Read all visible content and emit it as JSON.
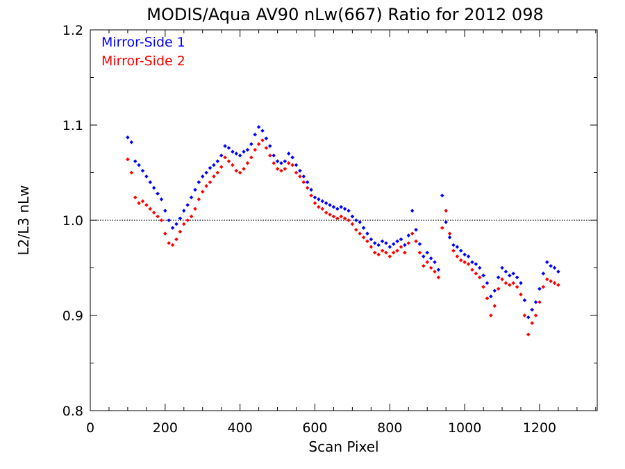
{
  "chart_data": {
    "type": "scatter",
    "title": "MODIS/Aqua AV90 nLw(667) Ratio for 2012 098",
    "xlabel": "Scan Pixel",
    "ylabel": "L2/L3 nLw",
    "xlim": [
      0,
      1354
    ],
    "ylim": [
      0.8,
      1.2
    ],
    "x_ticks": [
      0,
      200,
      400,
      600,
      800,
      1000,
      1200
    ],
    "x_tick_labels": [
      "0",
      "200",
      "400",
      "600",
      "800",
      "1000",
      "1200"
    ],
    "y_ticks": [
      0.8,
      0.9,
      1.0,
      1.1,
      1.2
    ],
    "y_tick_labels": [
      "0.8",
      "0.9",
      "1.0",
      "1.1",
      "1.2"
    ],
    "reference_line": {
      "y": 1.0,
      "style": "dotted"
    },
    "grid": false,
    "legend_placement": "top-left",
    "series": [
      {
        "name": "Mirror-Side 1",
        "color": "#0000ff",
        "points": [
          [
            100,
            1.087
          ],
          [
            110,
            1.082
          ],
          [
            120,
            1.062
          ],
          [
            130,
            1.058
          ],
          [
            140,
            1.052
          ],
          [
            150,
            1.046
          ],
          [
            160,
            1.04
          ],
          [
            170,
            1.034
          ],
          [
            180,
            1.028
          ],
          [
            190,
            1.022
          ],
          [
            200,
            1.01
          ],
          [
            210,
            1.0
          ],
          [
            220,
            0.992
          ],
          [
            230,
            0.996
          ],
          [
            240,
            1.002
          ],
          [
            250,
            1.01
          ],
          [
            260,
            1.016
          ],
          [
            270,
            1.024
          ],
          [
            280,
            1.032
          ],
          [
            290,
            1.04
          ],
          [
            300,
            1.046
          ],
          [
            310,
            1.05
          ],
          [
            320,
            1.055
          ],
          [
            330,
            1.058
          ],
          [
            340,
            1.062
          ],
          [
            350,
            1.068
          ],
          [
            360,
            1.078
          ],
          [
            370,
            1.076
          ],
          [
            380,
            1.072
          ],
          [
            390,
            1.07
          ],
          [
            400,
            1.068
          ],
          [
            410,
            1.072
          ],
          [
            420,
            1.074
          ],
          [
            430,
            1.08
          ],
          [
            440,
            1.09
          ],
          [
            450,
            1.098
          ],
          [
            460,
            1.094
          ],
          [
            470,
            1.086
          ],
          [
            480,
            1.078
          ],
          [
            490,
            1.068
          ],
          [
            500,
            1.062
          ],
          [
            510,
            1.06
          ],
          [
            520,
            1.062
          ],
          [
            530,
            1.07
          ],
          [
            540,
            1.066
          ],
          [
            550,
            1.058
          ],
          [
            560,
            1.052
          ],
          [
            570,
            1.046
          ],
          [
            580,
            1.04
          ],
          [
            590,
            1.032
          ],
          [
            600,
            1.024
          ],
          [
            610,
            1.022
          ],
          [
            620,
            1.02
          ],
          [
            630,
            1.018
          ],
          [
            640,
            1.016
          ],
          [
            650,
            1.014
          ],
          [
            660,
            1.012
          ],
          [
            670,
            1.014
          ],
          [
            680,
            1.012
          ],
          [
            690,
            1.01
          ],
          [
            700,
            1.004
          ],
          [
            710,
            1.0
          ],
          [
            720,
            0.998
          ],
          [
            730,
            0.992
          ],
          [
            740,
            0.986
          ],
          [
            750,
            0.98
          ],
          [
            760,
            0.976
          ],
          [
            770,
            0.974
          ],
          [
            780,
            0.978
          ],
          [
            790,
            0.976
          ],
          [
            800,
            0.972
          ],
          [
            810,
            0.975
          ],
          [
            820,
            0.978
          ],
          [
            830,
            0.98
          ],
          [
            840,
            0.974
          ],
          [
            850,
            0.984
          ],
          [
            860,
            1.01
          ],
          [
            870,
            0.99
          ],
          [
            880,
            0.975
          ],
          [
            890,
            0.962
          ],
          [
            900,
            0.966
          ],
          [
            910,
            0.96
          ],
          [
            920,
            0.956
          ],
          [
            930,
            0.948
          ],
          [
            940,
            1.026
          ],
          [
            950,
            0.998
          ],
          [
            960,
            0.982
          ],
          [
            970,
            0.974
          ],
          [
            980,
            0.972
          ],
          [
            990,
            0.968
          ],
          [
            1000,
            0.964
          ],
          [
            1010,
            0.962
          ],
          [
            1020,
            0.956
          ],
          [
            1030,
            0.954
          ],
          [
            1040,
            0.95
          ],
          [
            1050,
            0.942
          ],
          [
            1060,
            0.934
          ],
          [
            1070,
            0.92
          ],
          [
            1080,
            0.926
          ],
          [
            1090,
            0.94
          ],
          [
            1100,
            0.95
          ],
          [
            1110,
            0.946
          ],
          [
            1120,
            0.942
          ],
          [
            1130,
            0.944
          ],
          [
            1140,
            0.94
          ],
          [
            1150,
            0.934
          ],
          [
            1160,
            0.916
          ],
          [
            1170,
            0.898
          ],
          [
            1180,
            0.906
          ],
          [
            1190,
            0.914
          ],
          [
            1200,
            0.928
          ],
          [
            1210,
            0.944
          ],
          [
            1220,
            0.956
          ],
          [
            1230,
            0.952
          ],
          [
            1240,
            0.95
          ],
          [
            1250,
            0.946
          ]
        ]
      },
      {
        "name": "Mirror-Side 2",
        "color": "#ff0000",
        "points": [
          [
            100,
            1.064
          ],
          [
            110,
            1.05
          ],
          [
            120,
            1.024
          ],
          [
            130,
            1.018
          ],
          [
            140,
            1.02
          ],
          [
            150,
            1.016
          ],
          [
            160,
            1.012
          ],
          [
            170,
            1.008
          ],
          [
            180,
            1.004
          ],
          [
            190,
            1.0
          ],
          [
            200,
            0.986
          ],
          [
            210,
            0.976
          ],
          [
            220,
            0.974
          ],
          [
            230,
            0.98
          ],
          [
            240,
            0.988
          ],
          [
            250,
            0.996
          ],
          [
            260,
            1.0
          ],
          [
            270,
            1.004
          ],
          [
            280,
            1.012
          ],
          [
            290,
            1.022
          ],
          [
            300,
            1.03
          ],
          [
            310,
            1.036
          ],
          [
            320,
            1.04
          ],
          [
            330,
            1.046
          ],
          [
            340,
            1.05
          ],
          [
            350,
            1.056
          ],
          [
            360,
            1.066
          ],
          [
            370,
            1.062
          ],
          [
            380,
            1.058
          ],
          [
            390,
            1.052
          ],
          [
            400,
            1.05
          ],
          [
            410,
            1.054
          ],
          [
            420,
            1.06
          ],
          [
            430,
            1.066
          ],
          [
            440,
            1.074
          ],
          [
            450,
            1.08
          ],
          [
            460,
            1.084
          ],
          [
            470,
            1.076
          ],
          [
            480,
            1.068
          ],
          [
            490,
            1.06
          ],
          [
            500,
            1.054
          ],
          [
            510,
            1.052
          ],
          [
            520,
            1.054
          ],
          [
            530,
            1.06
          ],
          [
            540,
            1.058
          ],
          [
            550,
            1.05
          ],
          [
            560,
            1.046
          ],
          [
            570,
            1.04
          ],
          [
            580,
            1.034
          ],
          [
            590,
            1.026
          ],
          [
            600,
            1.018
          ],
          [
            610,
            1.014
          ],
          [
            620,
            1.012
          ],
          [
            630,
            1.008
          ],
          [
            640,
            1.006
          ],
          [
            650,
            1.004
          ],
          [
            660,
            1.002
          ],
          [
            670,
            1.004
          ],
          [
            680,
            1.002
          ],
          [
            690,
            1.0
          ],
          [
            700,
            0.996
          ],
          [
            710,
            0.99
          ],
          [
            720,
            0.986
          ],
          [
            730,
            0.982
          ],
          [
            740,
            0.978
          ],
          [
            750,
            0.972
          ],
          [
            760,
            0.966
          ],
          [
            770,
            0.964
          ],
          [
            780,
            0.968
          ],
          [
            790,
            0.966
          ],
          [
            800,
            0.962
          ],
          [
            810,
            0.966
          ],
          [
            820,
            0.968
          ],
          [
            830,
            0.972
          ],
          [
            840,
            0.966
          ],
          [
            850,
            0.976
          ],
          [
            860,
            0.986
          ],
          [
            870,
            0.978
          ],
          [
            880,
            0.966
          ],
          [
            890,
            0.952
          ],
          [
            900,
            0.956
          ],
          [
            910,
            0.95
          ],
          [
            920,
            0.946
          ],
          [
            930,
            0.94
          ],
          [
            940,
            0.992
          ],
          [
            950,
            1.01
          ],
          [
            960,
            0.986
          ],
          [
            970,
            0.968
          ],
          [
            980,
            0.962
          ],
          [
            990,
            0.958
          ],
          [
            1000,
            0.956
          ],
          [
            1010,
            0.954
          ],
          [
            1020,
            0.948
          ],
          [
            1030,
            0.944
          ],
          [
            1040,
            0.94
          ],
          [
            1050,
            0.93
          ],
          [
            1060,
            0.918
          ],
          [
            1070,
            0.9
          ],
          [
            1080,
            0.91
          ],
          [
            1090,
            0.928
          ],
          [
            1100,
            0.938
          ],
          [
            1110,
            0.934
          ],
          [
            1120,
            0.932
          ],
          [
            1130,
            0.934
          ],
          [
            1140,
            0.93
          ],
          [
            1150,
            0.922
          ],
          [
            1160,
            0.9
          ],
          [
            1170,
            0.88
          ],
          [
            1180,
            0.892
          ],
          [
            1190,
            0.9
          ],
          [
            1200,
            0.914
          ],
          [
            1210,
            0.93
          ],
          [
            1220,
            0.938
          ],
          [
            1230,
            0.936
          ],
          [
            1240,
            0.934
          ],
          [
            1250,
            0.932
          ]
        ]
      }
    ]
  }
}
